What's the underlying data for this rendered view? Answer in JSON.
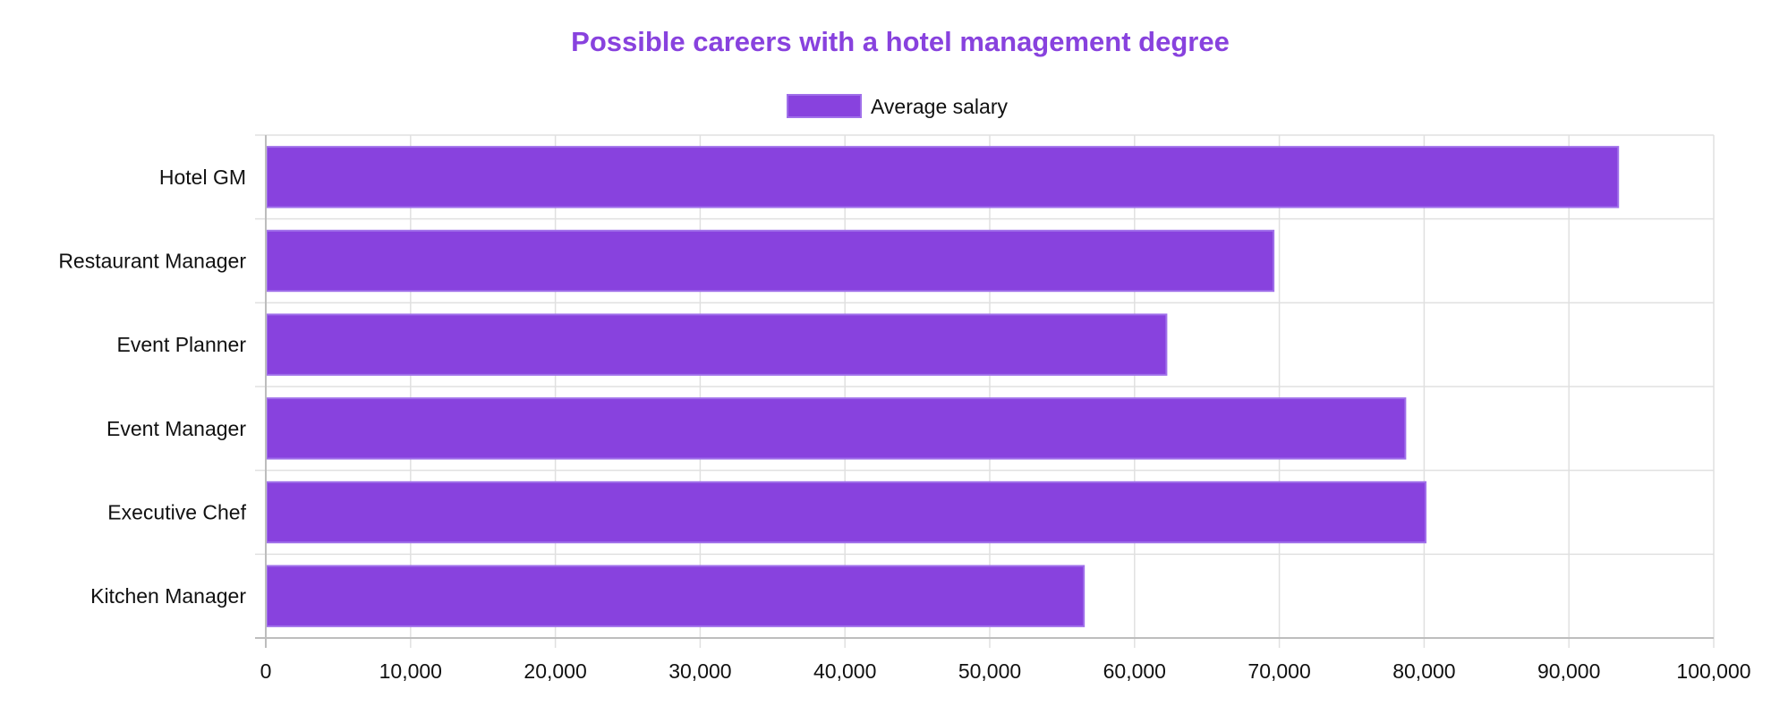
{
  "colors": {
    "bar_fill": "#8842de",
    "bar_border": "#a070ea",
    "title": "#8842de",
    "grid": "#e0e0e0",
    "axis": "#bdbdbd"
  },
  "chart_data": {
    "type": "bar",
    "orientation": "horizontal",
    "title": "Possible careers with a hotel management degree",
    "xlabel": "",
    "ylabel": "",
    "categories": [
      "Hotel GM",
      "Restaurant Manager",
      "Event Planner",
      "Event Manager",
      "Executive Chef",
      "Kitchen Manager"
    ],
    "series": [
      {
        "name": "Average salary",
        "values": [
          93400,
          69600,
          62200,
          78700,
          80100,
          56500
        ]
      }
    ],
    "xlim": [
      0,
      100000
    ],
    "ticks": [
      "0",
      "10,000",
      "20,000",
      "30,000",
      "40,000",
      "50,000",
      "60,000",
      "70,000",
      "80,000",
      "90,000",
      "100,000"
    ],
    "tick_values": [
      0,
      10000,
      20000,
      30000,
      40000,
      50000,
      60000,
      70000,
      80000,
      90000,
      100000
    ],
    "grid": true,
    "legend_position": "top"
  }
}
